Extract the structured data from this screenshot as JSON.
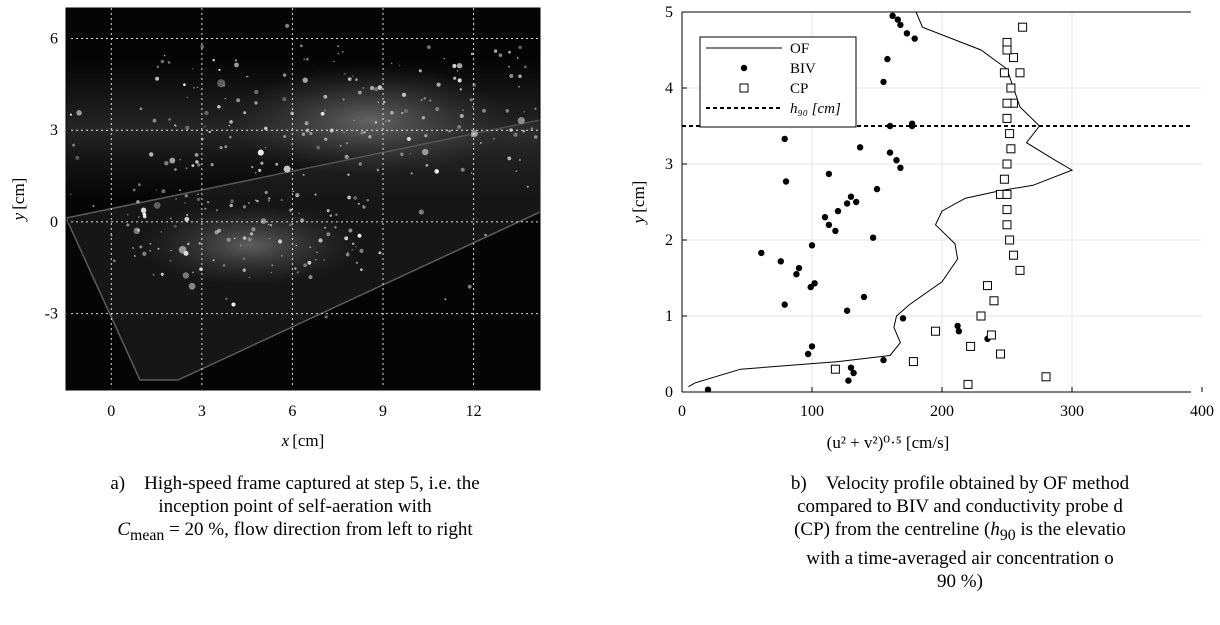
{
  "chart_data": [
    {
      "type": "image",
      "xlabel_var": "x",
      "xlabel_unit": "[cm]",
      "ylabel_var": "y",
      "ylabel_unit": "[cm]",
      "xlim": [
        -1.5,
        14.2
      ],
      "ylim": [
        -5.5,
        7.0
      ],
      "xticks": [
        0,
        3,
        6,
        9,
        12
      ],
      "yticks": [
        -3,
        0,
        3,
        6
      ],
      "grid": true
    },
    {
      "type": "scatter",
      "xlabel": "(u² + v²)⁰·⁵ [cm/s]",
      "ylabel_var": "y",
      "ylabel_unit": "[cm]",
      "xlim": [
        0,
        400
      ],
      "ylim": [
        0,
        5
      ],
      "xticks": [
        0,
        100,
        200,
        300,
        400
      ],
      "yticks": [
        0,
        1,
        2,
        3,
        4,
        5
      ],
      "grid": true,
      "legend_position": "top-left",
      "series": [
        {
          "name": "OF",
          "kind": "line",
          "x": [
            5,
            10,
            45,
            120,
            160,
            168,
            163,
            165,
            175,
            200,
            212,
            210,
            195,
            200,
            218,
            245,
            270,
            300,
            287,
            265,
            275,
            260,
            255,
            250,
            230,
            185,
            180
          ],
          "y": [
            0.07,
            0.12,
            0.3,
            0.4,
            0.48,
            0.65,
            0.85,
            1.0,
            1.15,
            1.45,
            1.75,
            1.95,
            2.2,
            2.38,
            2.55,
            2.65,
            2.72,
            2.92,
            3.05,
            3.28,
            3.5,
            3.75,
            4.0,
            4.25,
            4.5,
            4.8,
            5.0
          ]
        },
        {
          "name": "BIV",
          "kind": "dots",
          "x": [
            20,
            128,
            132,
            130,
            155,
            97,
            100,
            170,
            127,
            140,
            213,
            212,
            235,
            79,
            102,
            99,
            88,
            90,
            76,
            61,
            100,
            147,
            118,
            113,
            110,
            120,
            127,
            134,
            130,
            150,
            80,
            113,
            168,
            165,
            160,
            137,
            177,
            160,
            79,
            177,
            155,
            158,
            173,
            179,
            168,
            166,
            162
          ],
          "y": [
            0.03,
            0.15,
            0.25,
            0.32,
            0.42,
            0.5,
            0.6,
            0.97,
            1.07,
            1.25,
            0.8,
            0.87,
            0.7,
            1.15,
            1.43,
            1.38,
            1.55,
            1.63,
            1.72,
            1.83,
            1.93,
            2.03,
            2.12,
            2.2,
            2.3,
            2.38,
            2.48,
            2.5,
            2.57,
            2.67,
            2.77,
            2.87,
            2.95,
            3.05,
            3.15,
            3.22,
            3.5,
            3.5,
            3.33,
            3.53,
            4.08,
            4.38,
            4.72,
            4.65,
            4.83,
            4.9,
            4.95
          ]
        },
        {
          "name": "CP",
          "kind": "squares",
          "x": [
            220,
            280,
            222,
            245,
            238,
            230,
            195,
            178,
            118,
            240,
            235,
            260,
            255,
            252,
            250,
            250,
            245,
            248,
            250,
            253,
            252,
            250,
            255,
            253,
            248,
            255,
            250,
            250,
            260,
            250,
            250,
            262
          ],
          "y": [
            0.1,
            0.2,
            0.6,
            0.5,
            0.75,
            1.0,
            0.8,
            0.4,
            0.3,
            1.2,
            1.4,
            1.6,
            1.8,
            2.0,
            2.2,
            2.4,
            2.6,
            2.8,
            3.0,
            3.2,
            3.4,
            3.6,
            3.8,
            4.0,
            4.2,
            4.4,
            4.6,
            4.5,
            4.2,
            2.6,
            3.8,
            4.8
          ]
        },
        {
          "name": "h₉₀ [cm]",
          "kind": "hline",
          "y": 3.5
        }
      ]
    }
  ],
  "captions": {
    "a_marker": "a)",
    "a_line1": "High-speed frame captured at step 5, i.e. the",
    "a_line2": "inception point of self-aeration with",
    "a_line3_var": "C",
    "a_line3_sub": "mean",
    "a_line3_rest": " = 20 %, flow direction from left to right",
    "b_marker": "b)",
    "b_line1": "Velocity profile obtained by OF method",
    "b_line2": "compared to BIV and conductivity probe d",
    "b_line3_pre": "(CP) from the centreline (",
    "b_line3_var": "h",
    "b_line3_sub": "90",
    "b_line3_post": " is the elevatio",
    "b_line4": "with a time-averaged air concentration o",
    "b_line5": "90 %)"
  }
}
